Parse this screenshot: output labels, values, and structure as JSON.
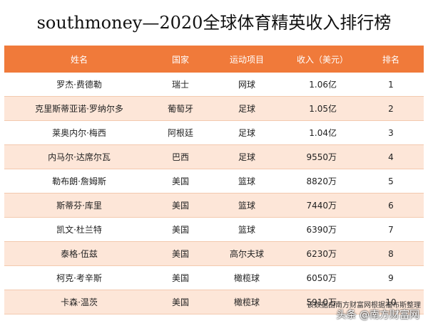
{
  "header": {
    "title": "southmoney—2020全球体育精英收入排行榜"
  },
  "table": {
    "columns": [
      "姓名",
      "国家",
      "运动项目",
      "收入（美元）",
      "排名"
    ],
    "rows": [
      [
        "罗杰·费德勒",
        "瑞士",
        "网球",
        "1.06亿",
        "1"
      ],
      [
        "克里斯蒂亚诺·罗纳尔多",
        "葡萄牙",
        "足球",
        "1.05亿",
        "2"
      ],
      [
        "莱奥内尔·梅西",
        "阿根廷",
        "足球",
        "1.04亿",
        "3"
      ],
      [
        "内马尔·达席尔瓦",
        "巴西",
        "足球",
        "9550万",
        "4"
      ],
      [
        "勒布朗·詹姆斯",
        "美国",
        "篮球",
        "8820万",
        "5"
      ],
      [
        "斯蒂芬·库里",
        "美国",
        "篮球",
        "7440万",
        "6"
      ],
      [
        "凯文·杜兰特",
        "美国",
        "篮球",
        "6390万",
        "7"
      ],
      [
        "泰格·伍兹",
        "美国",
        "高尔夫球",
        "6230万",
        "8"
      ],
      [
        "柯克·考辛斯",
        "美国",
        "橄榄球",
        "6050万",
        "9"
      ],
      [
        "卡森·温茨",
        "美国",
        "橄榄球",
        "5910万",
        "10"
      ]
    ]
  },
  "footer": {
    "note": "该数据由南方财富网根据福布斯整理",
    "watermark": "头条 @南方财富网"
  }
}
